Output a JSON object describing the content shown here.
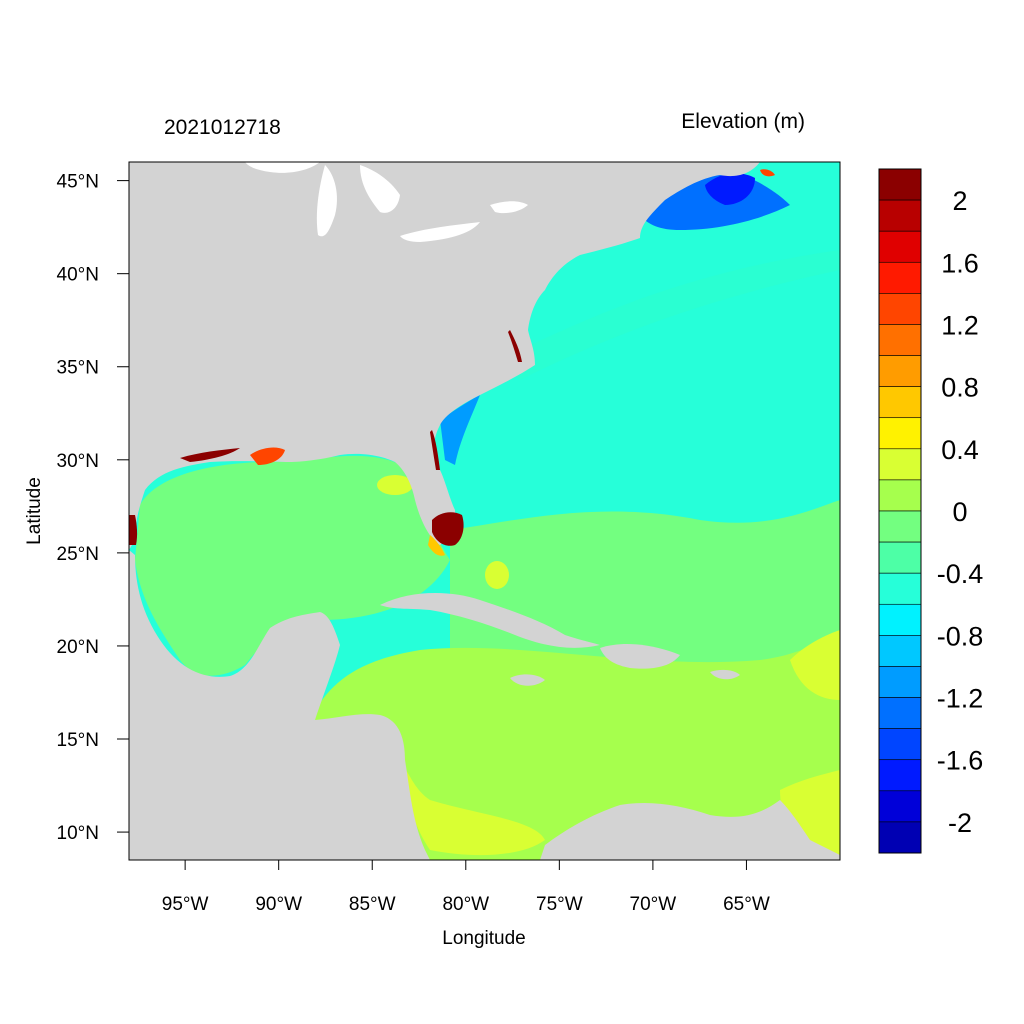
{
  "header": {
    "timestamp": "2021012718",
    "variable_title": "Elevation (m)"
  },
  "axes": {
    "xlabel": "Longitude",
    "ylabel": "Latitude",
    "x_ticks": [
      {
        "value": -95,
        "label": "95°W"
      },
      {
        "value": -90,
        "label": "90°W"
      },
      {
        "value": -85,
        "label": "85°W"
      },
      {
        "value": -80,
        "label": "80°W"
      },
      {
        "value": -75,
        "label": "75°W"
      },
      {
        "value": -70,
        "label": "70°W"
      },
      {
        "value": -65,
        "label": "65°W"
      }
    ],
    "y_ticks": [
      {
        "value": 45,
        "label": "45°N"
      },
      {
        "value": 40,
        "label": "40°N"
      },
      {
        "value": 35,
        "label": "35°N"
      },
      {
        "value": 30,
        "label": "30°N"
      },
      {
        "value": 25,
        "label": "25°N"
      },
      {
        "value": 20,
        "label": "20°N"
      },
      {
        "value": 15,
        "label": "15°N"
      },
      {
        "value": 10,
        "label": "10°N"
      }
    ],
    "xlim": [
      -98,
      -60
    ],
    "ylim": [
      8.5,
      46
    ]
  },
  "colorbar": {
    "levels_top_to_bottom": [
      "#8b0000",
      "#b80000",
      "#e00000",
      "#ff1a00",
      "#ff4500",
      "#ff7000",
      "#ff9c00",
      "#ffc800",
      "#fff200",
      "#d9ff33",
      "#a6ff4d",
      "#73ff80",
      "#4dffa6",
      "#26ffd9",
      "#00f2ff",
      "#00c8ff",
      "#009cff",
      "#0070ff",
      "#0045ff",
      "#001aff",
      "#0000d9",
      "#0000b3"
    ],
    "labels": [
      "2",
      "1.6",
      "1.2",
      "0.8",
      "0.4",
      "0",
      "-0.4",
      "-0.8",
      "-1.2",
      "-1.6",
      "-2"
    ]
  },
  "colors": {
    "land": "#d3d3d3",
    "lakes": "#ffffff",
    "atlantic": "#26ffd9",
    "gulf": "#73ff80",
    "caribbean": "#a6ff4d",
    "coastal_surge": "#8b0000"
  }
}
